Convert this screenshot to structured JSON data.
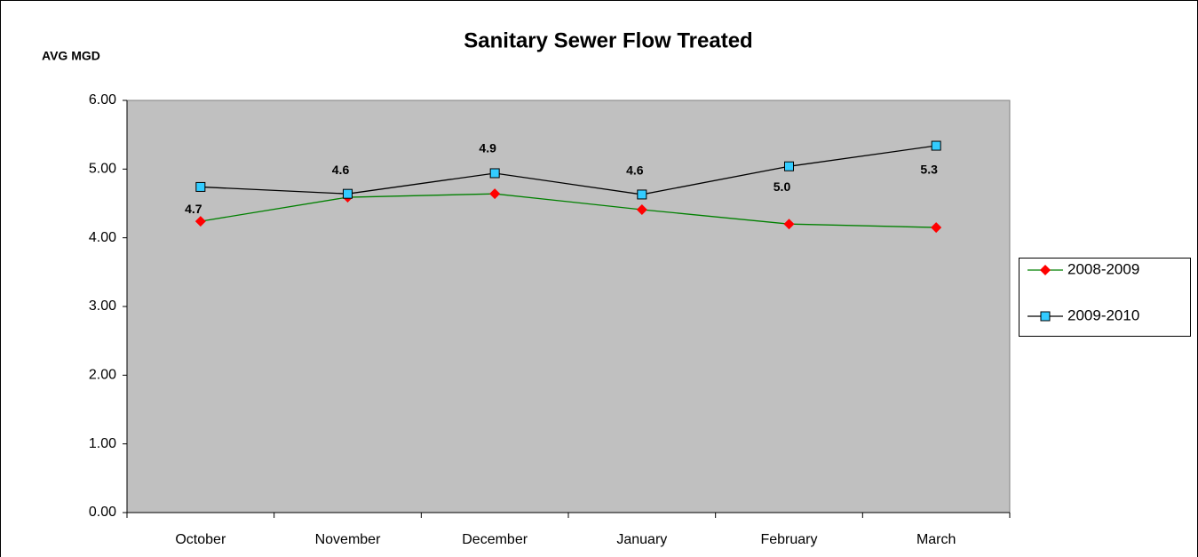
{
  "chart_data": {
    "type": "line",
    "title": "Sanitary Sewer Flow Treated",
    "y_label": "AVG MGD",
    "categories": [
      "October",
      "November",
      "December",
      "January",
      "February",
      "March"
    ],
    "series": [
      {
        "name": "2008-2009",
        "color": "#008000",
        "marker_color": "#ff0000",
        "marker": "diamond",
        "values": [
          4.24,
          4.59,
          4.64,
          4.41,
          4.2,
          4.15
        ]
      },
      {
        "name": "2009-2010",
        "color": "#000000",
        "marker_color": "#33ccff",
        "marker": "square",
        "values": [
          4.74,
          4.64,
          4.94,
          4.63,
          5.04,
          5.34
        ],
        "value_labels": [
          "4.7",
          "4.6",
          "4.9",
          "4.6",
          "5.0",
          "5.3"
        ]
      }
    ],
    "ylim": [
      0,
      6
    ],
    "yticks": [
      {
        "value": 0,
        "label": "0.00"
      },
      {
        "value": 1,
        "label": "1.00"
      },
      {
        "value": 2,
        "label": "2.00"
      },
      {
        "value": 3,
        "label": "3.00"
      },
      {
        "value": 4,
        "label": "4.00"
      },
      {
        "value": 5,
        "label": "5.00"
      },
      {
        "value": 6,
        "label": "6.00"
      }
    ],
    "grid": false,
    "legend": "right",
    "plot_background": "#c0c0c0"
  }
}
